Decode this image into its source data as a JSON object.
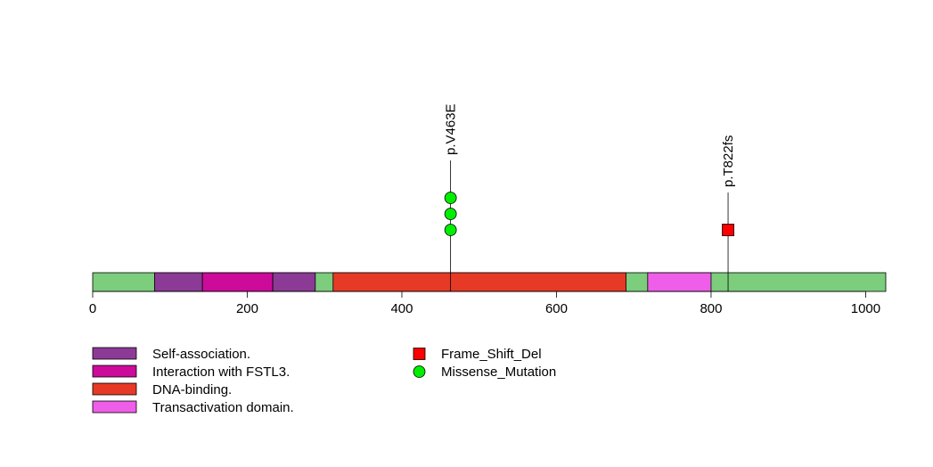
{
  "chart_data": {
    "type": "lollipop",
    "protein_length": 1026,
    "x_axis": {
      "range": [
        0,
        1026
      ],
      "ticks": [
        0,
        200,
        400,
        600,
        800,
        1000
      ]
    },
    "backbone_color": "#7ccd7c",
    "domains": [
      {
        "name": "Self-association.",
        "start": 80,
        "end": 142,
        "color": "#8b3a96"
      },
      {
        "name": "Interaction with FSTL3.",
        "start": 142,
        "end": 233,
        "color": "#cc0b9a"
      },
      {
        "name": "Self-association.",
        "start": 233,
        "end": 288,
        "color": "#8b3a96"
      },
      {
        "name": "DNA-binding.",
        "start": 311,
        "end": 690,
        "color": "#e63a26"
      },
      {
        "name": "Transactivation domain.",
        "start": 718,
        "end": 800,
        "color": "#ee5ee8"
      }
    ],
    "mutations": [
      {
        "label": "p.V463E",
        "position": 463,
        "count": 3,
        "type": "Missense_Mutation"
      },
      {
        "label": "p.T822fs",
        "position": 822,
        "count": 1,
        "type": "Frame_Shift_Del"
      }
    ],
    "mutation_types": [
      {
        "name": "Frame_Shift_Del",
        "shape": "square",
        "color": "#ff0000"
      },
      {
        "name": "Missense_Mutation",
        "shape": "circle",
        "color": "#00ee00"
      }
    ],
    "legend_domains": [
      {
        "name": "Self-association.",
        "color": "#8b3a96"
      },
      {
        "name": "Interaction with FSTL3.",
        "color": "#cc0b9a"
      },
      {
        "name": "DNA-binding.",
        "color": "#e63a26"
      },
      {
        "name": "Transactivation domain.",
        "color": "#ee5ee8"
      }
    ]
  }
}
